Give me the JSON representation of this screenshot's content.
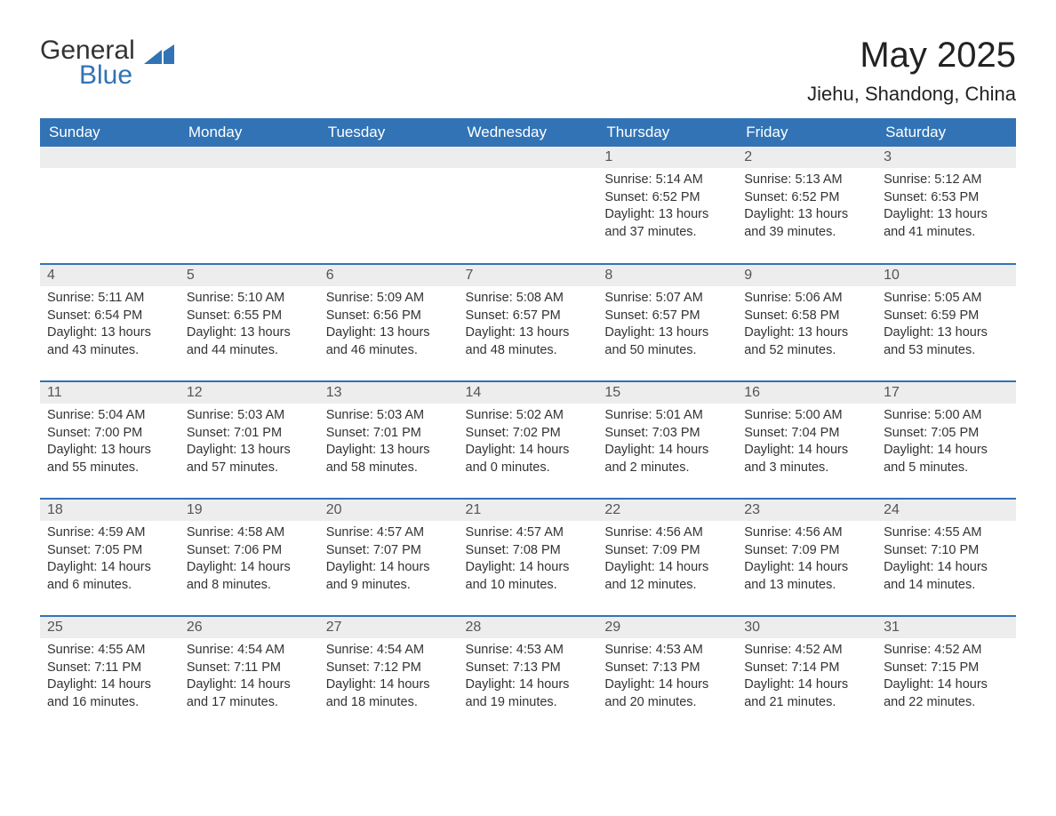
{
  "logo": {
    "text1": "General",
    "text2": "Blue",
    "color_blue": "#3173b5",
    "color_dark": "#333333"
  },
  "title": "May 2025",
  "location": "Jiehu, Shandong, China",
  "colors": {
    "header_bg": "#3173b5",
    "header_text": "#ffffff",
    "daynum_bg": "#ededed",
    "daynum_text": "#555555",
    "body_text": "#333333",
    "rule": "#3173b5",
    "page_bg": "#ffffff"
  },
  "day_headers": [
    "Sunday",
    "Monday",
    "Tuesday",
    "Wednesday",
    "Thursday",
    "Friday",
    "Saturday"
  ],
  "weeks": [
    [
      {
        "day": "",
        "sunrise": "",
        "sunset": "",
        "daylight": ""
      },
      {
        "day": "",
        "sunrise": "",
        "sunset": "",
        "daylight": ""
      },
      {
        "day": "",
        "sunrise": "",
        "sunset": "",
        "daylight": ""
      },
      {
        "day": "",
        "sunrise": "",
        "sunset": "",
        "daylight": ""
      },
      {
        "day": "1",
        "sunrise": "Sunrise: 5:14 AM",
        "sunset": "Sunset: 6:52 PM",
        "daylight": "Daylight: 13 hours and 37 minutes."
      },
      {
        "day": "2",
        "sunrise": "Sunrise: 5:13 AM",
        "sunset": "Sunset: 6:52 PM",
        "daylight": "Daylight: 13 hours and 39 minutes."
      },
      {
        "day": "3",
        "sunrise": "Sunrise: 5:12 AM",
        "sunset": "Sunset: 6:53 PM",
        "daylight": "Daylight: 13 hours and 41 minutes."
      }
    ],
    [
      {
        "day": "4",
        "sunrise": "Sunrise: 5:11 AM",
        "sunset": "Sunset: 6:54 PM",
        "daylight": "Daylight: 13 hours and 43 minutes."
      },
      {
        "day": "5",
        "sunrise": "Sunrise: 5:10 AM",
        "sunset": "Sunset: 6:55 PM",
        "daylight": "Daylight: 13 hours and 44 minutes."
      },
      {
        "day": "6",
        "sunrise": "Sunrise: 5:09 AM",
        "sunset": "Sunset: 6:56 PM",
        "daylight": "Daylight: 13 hours and 46 minutes."
      },
      {
        "day": "7",
        "sunrise": "Sunrise: 5:08 AM",
        "sunset": "Sunset: 6:57 PM",
        "daylight": "Daylight: 13 hours and 48 minutes."
      },
      {
        "day": "8",
        "sunrise": "Sunrise: 5:07 AM",
        "sunset": "Sunset: 6:57 PM",
        "daylight": "Daylight: 13 hours and 50 minutes."
      },
      {
        "day": "9",
        "sunrise": "Sunrise: 5:06 AM",
        "sunset": "Sunset: 6:58 PM",
        "daylight": "Daylight: 13 hours and 52 minutes."
      },
      {
        "day": "10",
        "sunrise": "Sunrise: 5:05 AM",
        "sunset": "Sunset: 6:59 PM",
        "daylight": "Daylight: 13 hours and 53 minutes."
      }
    ],
    [
      {
        "day": "11",
        "sunrise": "Sunrise: 5:04 AM",
        "sunset": "Sunset: 7:00 PM",
        "daylight": "Daylight: 13 hours and 55 minutes."
      },
      {
        "day": "12",
        "sunrise": "Sunrise: 5:03 AM",
        "sunset": "Sunset: 7:01 PM",
        "daylight": "Daylight: 13 hours and 57 minutes."
      },
      {
        "day": "13",
        "sunrise": "Sunrise: 5:03 AM",
        "sunset": "Sunset: 7:01 PM",
        "daylight": "Daylight: 13 hours and 58 minutes."
      },
      {
        "day": "14",
        "sunrise": "Sunrise: 5:02 AM",
        "sunset": "Sunset: 7:02 PM",
        "daylight": "Daylight: 14 hours and 0 minutes."
      },
      {
        "day": "15",
        "sunrise": "Sunrise: 5:01 AM",
        "sunset": "Sunset: 7:03 PM",
        "daylight": "Daylight: 14 hours and 2 minutes."
      },
      {
        "day": "16",
        "sunrise": "Sunrise: 5:00 AM",
        "sunset": "Sunset: 7:04 PM",
        "daylight": "Daylight: 14 hours and 3 minutes."
      },
      {
        "day": "17",
        "sunrise": "Sunrise: 5:00 AM",
        "sunset": "Sunset: 7:05 PM",
        "daylight": "Daylight: 14 hours and 5 minutes."
      }
    ],
    [
      {
        "day": "18",
        "sunrise": "Sunrise: 4:59 AM",
        "sunset": "Sunset: 7:05 PM",
        "daylight": "Daylight: 14 hours and 6 minutes."
      },
      {
        "day": "19",
        "sunrise": "Sunrise: 4:58 AM",
        "sunset": "Sunset: 7:06 PM",
        "daylight": "Daylight: 14 hours and 8 minutes."
      },
      {
        "day": "20",
        "sunrise": "Sunrise: 4:57 AM",
        "sunset": "Sunset: 7:07 PM",
        "daylight": "Daylight: 14 hours and 9 minutes."
      },
      {
        "day": "21",
        "sunrise": "Sunrise: 4:57 AM",
        "sunset": "Sunset: 7:08 PM",
        "daylight": "Daylight: 14 hours and 10 minutes."
      },
      {
        "day": "22",
        "sunrise": "Sunrise: 4:56 AM",
        "sunset": "Sunset: 7:09 PM",
        "daylight": "Daylight: 14 hours and 12 minutes."
      },
      {
        "day": "23",
        "sunrise": "Sunrise: 4:56 AM",
        "sunset": "Sunset: 7:09 PM",
        "daylight": "Daylight: 14 hours and 13 minutes."
      },
      {
        "day": "24",
        "sunrise": "Sunrise: 4:55 AM",
        "sunset": "Sunset: 7:10 PM",
        "daylight": "Daylight: 14 hours and 14 minutes."
      }
    ],
    [
      {
        "day": "25",
        "sunrise": "Sunrise: 4:55 AM",
        "sunset": "Sunset: 7:11 PM",
        "daylight": "Daylight: 14 hours and 16 minutes."
      },
      {
        "day": "26",
        "sunrise": "Sunrise: 4:54 AM",
        "sunset": "Sunset: 7:11 PM",
        "daylight": "Daylight: 14 hours and 17 minutes."
      },
      {
        "day": "27",
        "sunrise": "Sunrise: 4:54 AM",
        "sunset": "Sunset: 7:12 PM",
        "daylight": "Daylight: 14 hours and 18 minutes."
      },
      {
        "day": "28",
        "sunrise": "Sunrise: 4:53 AM",
        "sunset": "Sunset: 7:13 PM",
        "daylight": "Daylight: 14 hours and 19 minutes."
      },
      {
        "day": "29",
        "sunrise": "Sunrise: 4:53 AM",
        "sunset": "Sunset: 7:13 PM",
        "daylight": "Daylight: 14 hours and 20 minutes."
      },
      {
        "day": "30",
        "sunrise": "Sunrise: 4:52 AM",
        "sunset": "Sunset: 7:14 PM",
        "daylight": "Daylight: 14 hours and 21 minutes."
      },
      {
        "day": "31",
        "sunrise": "Sunrise: 4:52 AM",
        "sunset": "Sunset: 7:15 PM",
        "daylight": "Daylight: 14 hours and 22 minutes."
      }
    ]
  ]
}
